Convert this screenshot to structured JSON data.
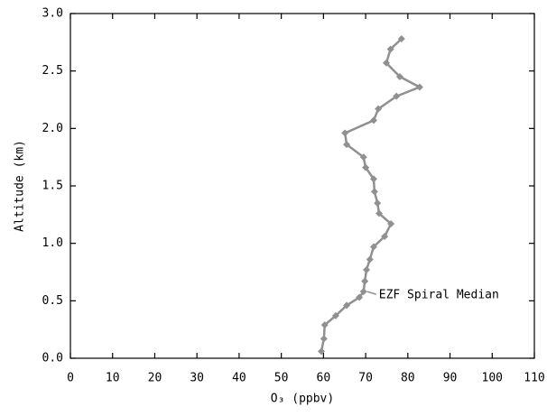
{
  "chart_data": {
    "type": "line",
    "xlabel": "O₃ (ppbv)",
    "ylabel": "Altitude (km)",
    "xlim": [
      0,
      110
    ],
    "ylim": [
      0,
      3
    ],
    "xticks": [
      0,
      10,
      20,
      30,
      40,
      50,
      60,
      70,
      80,
      90,
      100,
      110
    ],
    "yticks": [
      {
        "value": 0,
        "label": "0.0"
      },
      {
        "value": 0.5,
        "label": "0.5"
      },
      {
        "value": 1,
        "label": "1.0"
      },
      {
        "value": 1.5,
        "label": "1.5"
      },
      {
        "value": 2,
        "label": "2.0"
      },
      {
        "value": 2.5,
        "label": "2.5"
      },
      {
        "value": 3,
        "label": "3.0"
      }
    ],
    "series": [
      {
        "name": "EZF Spiral Median",
        "color": "#909090",
        "x": [
          78.5,
          75.9,
          74.9,
          78.1,
          82.8,
          77.3,
          73.0,
          71.9,
          65.1,
          65.5,
          69.5,
          70.0,
          71.9,
          72.1,
          72.8,
          73.2,
          76.0,
          74.5,
          71.9,
          71.0,
          70.2,
          69.8,
          69.5,
          68.5,
          65.5,
          62.9,
          60.3,
          60.1,
          59.5
        ],
        "values": [
          2.78,
          2.69,
          2.57,
          2.45,
          2.36,
          2.28,
          2.17,
          2.07,
          1.96,
          1.86,
          1.75,
          1.66,
          1.56,
          1.45,
          1.35,
          1.26,
          1.17,
          1.06,
          0.97,
          0.86,
          0.77,
          0.67,
          0.58,
          0.53,
          0.46,
          0.37,
          0.29,
          0.17,
          0.06
        ]
      }
    ]
  }
}
